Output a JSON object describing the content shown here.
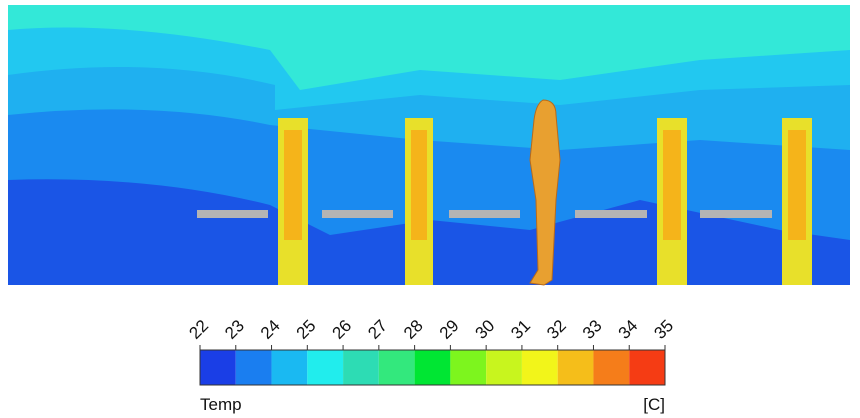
{
  "colorbar": {
    "title": "Temp",
    "unit": "[C]",
    "ticks": [
      22,
      23,
      24,
      25,
      26,
      27,
      28,
      29,
      30,
      31,
      32,
      33,
      34,
      35
    ],
    "colors": [
      "#1a3ee6",
      "#1a7ef0",
      "#1ab9f2",
      "#21eded",
      "#2ddcb4",
      "#33e87d",
      "#00e633",
      "#7df51e",
      "#c8f51e",
      "#f2f51a",
      "#f5be1a",
      "#f57d1a",
      "#f53c14"
    ]
  }
}
